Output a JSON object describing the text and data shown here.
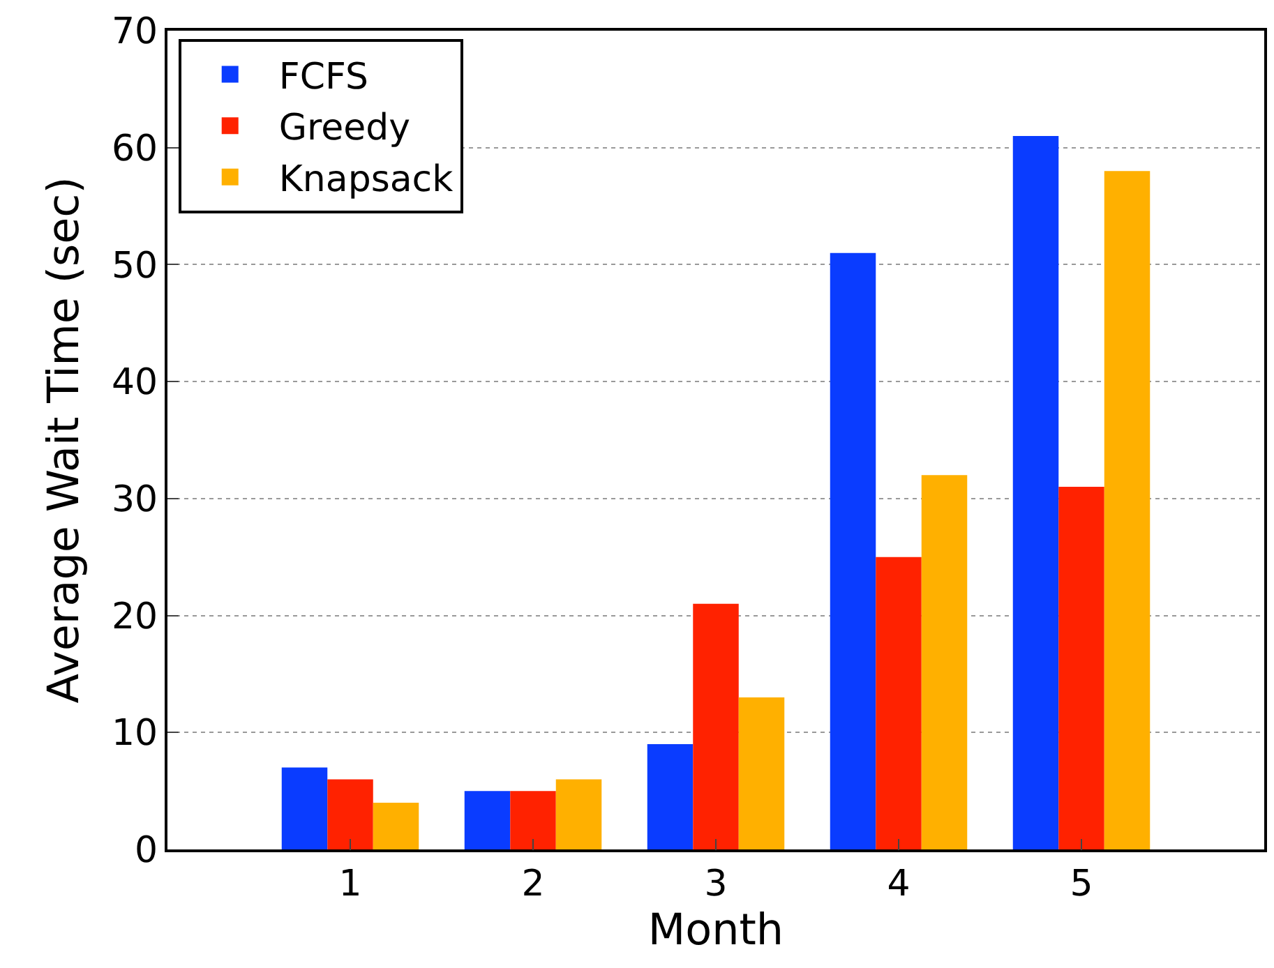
{
  "chart_data": {
    "type": "bar",
    "xlabel": "Month",
    "ylabel": "Average Wait Time (sec)",
    "categories": [
      "1",
      "2",
      "3",
      "4",
      "5"
    ],
    "series": [
      {
        "name": "FCFS",
        "color": "#0a3cff",
        "values": [
          7,
          5,
          9,
          51,
          61
        ]
      },
      {
        "name": "Greedy",
        "color": "#ff2200",
        "values": [
          6,
          5,
          21,
          25,
          31
        ]
      },
      {
        "name": "Knapsack",
        "color": "#ffb000",
        "values": [
          4,
          6,
          13,
          32,
          58
        ]
      }
    ],
    "ylim": [
      0,
      70
    ],
    "yticks": [
      0,
      10,
      20,
      30,
      40,
      50,
      60,
      70
    ],
    "grid": "y",
    "legend": "top left"
  }
}
